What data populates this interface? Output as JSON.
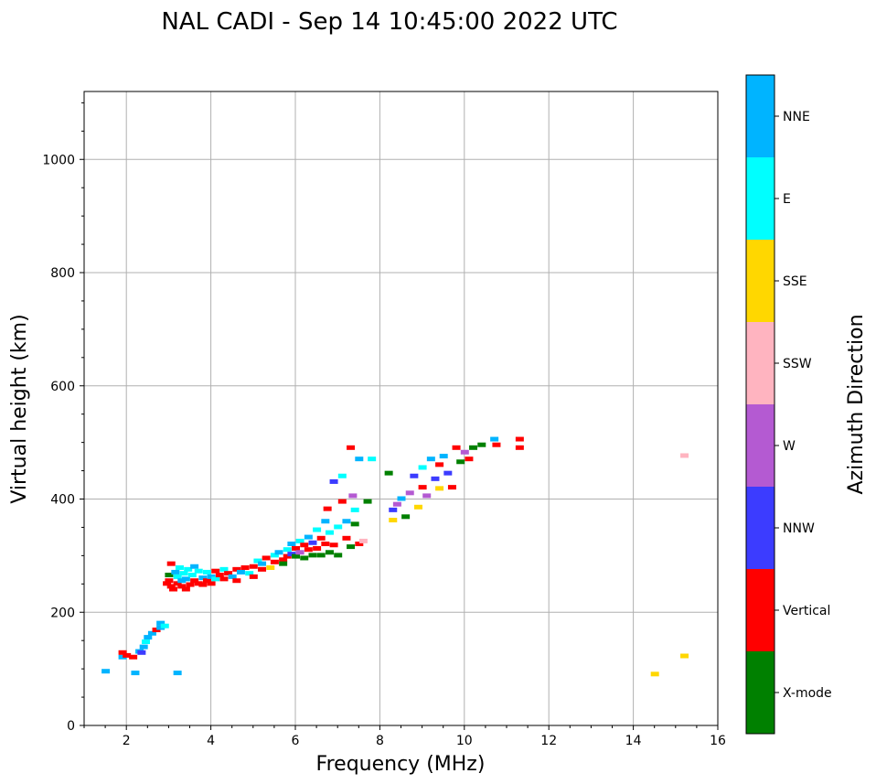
{
  "chart_data": {
    "type": "scatter",
    "title": "NAL CADI - Sep 14 10:45:00 2022 UTC",
    "xlabel": "Frequency (MHz)",
    "ylabel": "Virtual height (km)",
    "xlim": [
      1,
      16
    ],
    "ylim": [
      0,
      1120
    ],
    "xticks": [
      2,
      4,
      6,
      8,
      10,
      12,
      14,
      16
    ],
    "yticks": [
      0,
      200,
      400,
      600,
      800,
      1000
    ],
    "grid": true,
    "colorbar": {
      "label": "Azimuth Direction",
      "categories": [
        {
          "name": "X-mode",
          "color": "#008000"
        },
        {
          "name": "Vertical",
          "color": "#ff0000"
        },
        {
          "name": "NNW",
          "color": "#3c3cff"
        },
        {
          "name": "W",
          "color": "#b45ad2"
        },
        {
          "name": "SSW",
          "color": "#ffb4c0"
        },
        {
          "name": "SSE",
          "color": "#ffd700"
        },
        {
          "name": "E",
          "color": "#00ffff"
        },
        {
          "name": "NNE",
          "color": "#00b4ff"
        }
      ]
    },
    "points": [
      [
        1.5,
        95,
        7
      ],
      [
        1.9,
        120,
        7
      ],
      [
        1.9,
        128,
        1
      ],
      [
        2.0,
        123,
        1
      ],
      [
        2.15,
        120,
        1
      ],
      [
        2.2,
        92,
        7
      ],
      [
        2.3,
        130,
        7
      ],
      [
        2.35,
        128,
        2
      ],
      [
        2.4,
        138,
        7
      ],
      [
        2.5,
        155,
        7
      ],
      [
        2.45,
        147,
        6
      ],
      [
        2.6,
        162,
        7
      ],
      [
        2.7,
        168,
        1
      ],
      [
        2.8,
        172,
        7
      ],
      [
        2.8,
        180,
        7
      ],
      [
        2.9,
        175,
        6
      ],
      [
        3.2,
        92,
        7
      ],
      [
        2.95,
        250,
        1
      ],
      [
        3.0,
        255,
        1
      ],
      [
        3.0,
        265,
        0
      ],
      [
        3.05,
        245,
        1
      ],
      [
        3.05,
        285,
        1
      ],
      [
        3.1,
        240,
        1
      ],
      [
        3.15,
        270,
        7
      ],
      [
        3.2,
        250,
        1
      ],
      [
        3.2,
        262,
        6
      ],
      [
        3.25,
        278,
        6
      ],
      [
        3.3,
        245,
        1
      ],
      [
        3.3,
        255,
        7
      ],
      [
        3.35,
        268,
        6
      ],
      [
        3.4,
        240,
        1
      ],
      [
        3.4,
        258,
        7
      ],
      [
        3.45,
        275,
        6
      ],
      [
        3.5,
        248,
        1
      ],
      [
        3.55,
        265,
        6
      ],
      [
        3.6,
        255,
        1
      ],
      [
        3.6,
        280,
        7
      ],
      [
        3.7,
        250,
        1
      ],
      [
        3.7,
        272,
        6
      ],
      [
        3.8,
        260,
        7
      ],
      [
        3.8,
        248,
        1
      ],
      [
        3.9,
        255,
        1
      ],
      [
        3.9,
        270,
        6
      ],
      [
        4.0,
        250,
        1
      ],
      [
        4.0,
        262,
        7
      ],
      [
        4.1,
        272,
        1
      ],
      [
        4.1,
        258,
        6
      ],
      [
        4.2,
        265,
        1
      ],
      [
        4.3,
        258,
        1
      ],
      [
        4.3,
        275,
        6
      ],
      [
        4.4,
        268,
        1
      ],
      [
        4.5,
        262,
        7
      ],
      [
        4.6,
        275,
        1
      ],
      [
        4.6,
        255,
        1
      ],
      [
        4.7,
        270,
        7
      ],
      [
        4.8,
        278,
        1
      ],
      [
        4.9,
        268,
        6
      ],
      [
        5.0,
        280,
        1
      ],
      [
        5.0,
        262,
        1
      ],
      [
        5.1,
        290,
        6
      ],
      [
        5.2,
        275,
        1
      ],
      [
        5.2,
        285,
        7
      ],
      [
        5.3,
        295,
        1
      ],
      [
        5.4,
        278,
        5
      ],
      [
        5.5,
        288,
        1
      ],
      [
        5.5,
        300,
        6
      ],
      [
        5.6,
        305,
        7
      ],
      [
        5.7,
        292,
        1
      ],
      [
        5.7,
        285,
        0
      ],
      [
        5.8,
        310,
        6
      ],
      [
        5.8,
        298,
        1
      ],
      [
        5.9,
        320,
        7
      ],
      [
        5.9,
        302,
        2
      ],
      [
        6.0,
        298,
        0
      ],
      [
        6.0,
        312,
        1
      ],
      [
        6.1,
        325,
        6
      ],
      [
        6.1,
        305,
        3
      ],
      [
        6.2,
        318,
        1
      ],
      [
        6.2,
        295,
        0
      ],
      [
        6.3,
        332,
        7
      ],
      [
        6.3,
        310,
        1
      ],
      [
        6.4,
        300,
        0
      ],
      [
        6.4,
        322,
        2
      ],
      [
        6.5,
        345,
        6
      ],
      [
        6.5,
        312,
        1
      ],
      [
        6.6,
        330,
        1
      ],
      [
        6.6,
        300,
        0
      ],
      [
        6.7,
        360,
        7
      ],
      [
        6.7,
        320,
        1
      ],
      [
        6.75,
        382,
        1
      ],
      [
        6.8,
        340,
        6
      ],
      [
        6.8,
        305,
        0
      ],
      [
        6.9,
        430,
        2
      ],
      [
        6.9,
        318,
        1
      ],
      [
        7.0,
        350,
        6
      ],
      [
        7.0,
        300,
        0
      ],
      [
        7.1,
        395,
        1
      ],
      [
        7.1,
        440,
        6
      ],
      [
        7.2,
        360,
        7
      ],
      [
        7.2,
        330,
        1
      ],
      [
        7.3,
        315,
        0
      ],
      [
        7.3,
        490,
        1
      ],
      [
        7.35,
        405,
        3
      ],
      [
        7.4,
        355,
        0
      ],
      [
        7.4,
        380,
        6
      ],
      [
        7.5,
        320,
        1
      ],
      [
        7.5,
        470,
        7
      ],
      [
        7.6,
        325,
        4
      ],
      [
        7.7,
        395,
        0
      ],
      [
        7.8,
        470,
        6
      ],
      [
        8.2,
        445,
        0
      ],
      [
        8.3,
        362,
        5
      ],
      [
        8.3,
        380,
        2
      ],
      [
        8.4,
        390,
        3
      ],
      [
        8.5,
        400,
        7
      ],
      [
        8.6,
        368,
        0
      ],
      [
        8.7,
        410,
        3
      ],
      [
        8.8,
        440,
        2
      ],
      [
        8.9,
        385,
        5
      ],
      [
        9.0,
        455,
        6
      ],
      [
        9.0,
        420,
        1
      ],
      [
        9.1,
        405,
        3
      ],
      [
        9.2,
        470,
        7
      ],
      [
        9.3,
        435,
        2
      ],
      [
        9.4,
        418,
        5
      ],
      [
        9.4,
        460,
        1
      ],
      [
        9.5,
        475,
        7
      ],
      [
        9.6,
        445,
        2
      ],
      [
        9.7,
        420,
        1
      ],
      [
        9.8,
        490,
        1
      ],
      [
        9.9,
        465,
        0
      ],
      [
        10.0,
        482,
        3
      ],
      [
        10.1,
        470,
        1
      ],
      [
        10.2,
        490,
        0
      ],
      [
        10.4,
        495,
        0
      ],
      [
        10.7,
        505,
        7
      ],
      [
        10.75,
        495,
        1
      ],
      [
        11.3,
        505,
        1
      ],
      [
        11.3,
        490,
        1
      ],
      [
        14.5,
        90,
        5
      ],
      [
        15.2,
        122,
        5
      ],
      [
        15.2,
        476,
        4
      ]
    ]
  }
}
